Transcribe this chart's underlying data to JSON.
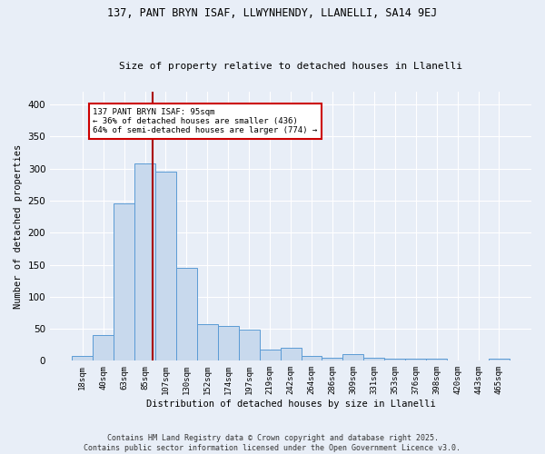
{
  "title_line1": "137, PANT BRYN ISAF, LLWYNHENDY, LLANELLI, SA14 9EJ",
  "title_line2": "Size of property relative to detached houses in Llanelli",
  "xlabel": "Distribution of detached houses by size in Llanelli",
  "ylabel": "Number of detached properties",
  "bin_labels": [
    "18sqm",
    "40sqm",
    "63sqm",
    "85sqm",
    "107sqm",
    "130sqm",
    "152sqm",
    "174sqm",
    "197sqm",
    "219sqm",
    "242sqm",
    "264sqm",
    "286sqm",
    "309sqm",
    "331sqm",
    "353sqm",
    "376sqm",
    "398sqm",
    "420sqm",
    "443sqm",
    "465sqm"
  ],
  "bar_values": [
    7,
    40,
    245,
    308,
    295,
    145,
    57,
    55,
    48,
    18,
    20,
    7,
    5,
    11,
    5,
    4,
    3,
    3,
    1,
    1,
    4
  ],
  "bar_color": "#c8d9ed",
  "bar_edge_color": "#5b9bd5",
  "red_line_x": 3.35,
  "red_line_color": "#aa0000",
  "annotation_text": "137 PANT BRYN ISAF: 95sqm\n← 36% of detached houses are smaller (436)\n64% of semi-detached houses are larger (774) →",
  "annotation_box_facecolor": "#ffffff",
  "annotation_box_edgecolor": "#cc0000",
  "footer_text": "Contains HM Land Registry data © Crown copyright and database right 2025.\nContains public sector information licensed under the Open Government Licence v3.0.",
  "ylim": [
    0,
    420
  ],
  "yticks": [
    0,
    50,
    100,
    150,
    200,
    250,
    300,
    350,
    400
  ],
  "background_color": "#e8eef7",
  "grid_color": "#ffffff",
  "figsize": [
    6.0,
    5.0
  ],
  "dpi": 100
}
